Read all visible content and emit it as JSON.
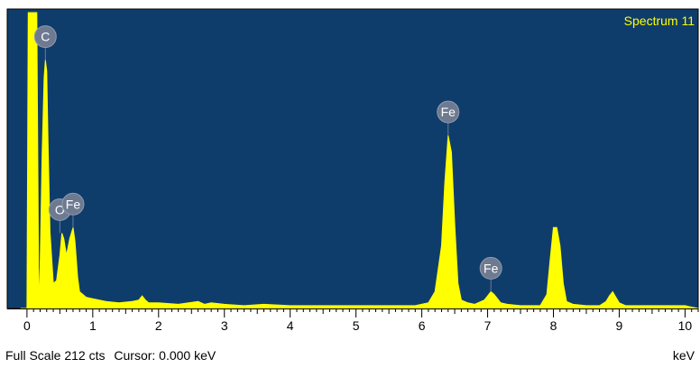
{
  "colors": {
    "plot_background": "#0f3d6b",
    "spectrum_fill": "#ffff00",
    "peak_marker": "#6e7a90",
    "peak_marker_text": "#ffffff",
    "title_text": "#ffff00",
    "axis": "#000000"
  },
  "status": {
    "full_scale": "Full Scale 212 cts",
    "cursor": "Cursor: 0.000 keV"
  },
  "chart_data": {
    "type": "area",
    "title": "Spectrum 11",
    "xlabel": "keV",
    "ylabel": "",
    "xlim": [
      -0.3,
      10.2
    ],
    "ylim": [
      0,
      212
    ],
    "x_ticks": [
      0,
      1,
      2,
      3,
      4,
      5,
      6,
      7,
      8,
      9,
      10
    ],
    "grid": false,
    "series": [
      {
        "x": [
          -0.1,
          0.0,
          0.02,
          0.05,
          0.1,
          0.15,
          0.18,
          0.2,
          0.23,
          0.26,
          0.28,
          0.3,
          0.32,
          0.35,
          0.4,
          0.45,
          0.5,
          0.53,
          0.56,
          0.6,
          0.65,
          0.7,
          0.73,
          0.77,
          0.8,
          0.85,
          0.9,
          1.0,
          1.1,
          1.2,
          1.4,
          1.6,
          1.7,
          1.75,
          1.8,
          1.85,
          2.0,
          2.3,
          2.6,
          2.7,
          2.8,
          3.0,
          3.3,
          3.6,
          4.0,
          4.5,
          5.0,
          5.5,
          5.9,
          6.1,
          6.2,
          6.3,
          6.35,
          6.4,
          6.45,
          6.5,
          6.55,
          6.6,
          6.7,
          6.8,
          6.95,
          7.0,
          7.05,
          7.1,
          7.15,
          7.2,
          7.3,
          7.5,
          7.8,
          7.9,
          7.95,
          8.0,
          8.05,
          8.1,
          8.15,
          8.2,
          8.3,
          8.5,
          8.7,
          8.8,
          8.85,
          8.9,
          8.95,
          9.0,
          9.1,
          9.5,
          10.0,
          10.2
        ],
        "values": [
          0,
          0,
          212,
          212,
          212,
          212,
          0,
          30,
          110,
          165,
          178,
          170,
          120,
          55,
          18,
          20,
          38,
          54,
          50,
          38,
          50,
          58,
          48,
          22,
          12,
          10,
          8,
          7,
          6,
          5,
          4,
          5,
          6,
          9,
          6,
          4,
          4,
          3,
          5,
          3,
          4,
          3,
          2,
          3,
          2,
          2,
          2,
          2,
          2,
          4,
          12,
          45,
          90,
          124,
          112,
          60,
          18,
          6,
          4,
          3,
          6,
          9,
          12,
          10,
          7,
          4,
          3,
          2,
          2,
          10,
          35,
          58,
          58,
          45,
          18,
          5,
          3,
          2,
          2,
          5,
          9,
          12,
          8,
          4,
          2,
          2,
          2,
          0
        ]
      }
    ],
    "annotations": [
      {
        "label": "C",
        "x": 0.28,
        "y": 178
      },
      {
        "label": "O",
        "x": 0.5,
        "y": 54
      },
      {
        "label": "Fe",
        "x": 0.7,
        "y": 58
      },
      {
        "label": "Fe",
        "x": 6.4,
        "y": 124
      },
      {
        "label": "Fe",
        "x": 7.05,
        "y": 12
      }
    ]
  }
}
